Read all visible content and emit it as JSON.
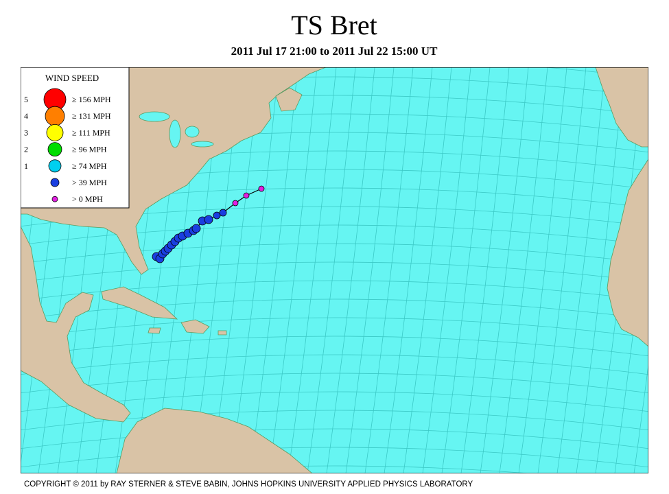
{
  "header": {
    "title": "TS Bret",
    "subtitle": "2011 Jul 17 21:00 to 2011 Jul 22 15:00 UT"
  },
  "legend": {
    "title": "WIND SPEED",
    "entries": [
      {
        "category": "5",
        "label": "≥ 156 MPH"
      },
      {
        "category": "4",
        "label": "≥ 131 MPH"
      },
      {
        "category": "3",
        "label": "≥ 111 MPH"
      },
      {
        "category": "2",
        "label": "≥ 96 MPH"
      },
      {
        "category": "1",
        "label": "≥ 74 MPH"
      },
      {
        "label": "> 39 MPH"
      },
      {
        "label": "> 0 MPH"
      }
    ]
  },
  "footer": {
    "copyright": "COPYRIGHT © 2011 by RAY STERNER & STEVE BABIN, JOHNS HOPKINS UNIVERSITY APPLIED PHYSICS LABORATORY"
  }
}
